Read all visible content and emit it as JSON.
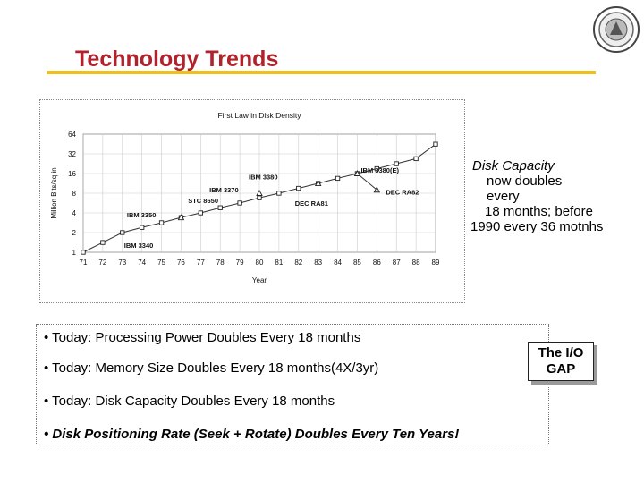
{
  "slide": {
    "title": "Technology Trends",
    "accent_color": "#b0222c",
    "rule_color": "#f0bf1a",
    "logo_icon": "university-seal-icon"
  },
  "chart_data": {
    "type": "line",
    "title": "First Law in Disk Density",
    "xlabel": "Year",
    "ylabel": "Million Bits/sq in",
    "yscale": "log2",
    "ylim": [
      1,
      64
    ],
    "yticks": [
      1,
      2,
      4,
      8,
      16,
      32,
      64
    ],
    "x": [
      "71",
      "72",
      "73",
      "74",
      "75",
      "76",
      "77",
      "78",
      "79",
      "80",
      "81",
      "82",
      "83",
      "84",
      "85",
      "86",
      "87",
      "88",
      "89"
    ],
    "grid": true,
    "series": [
      {
        "marker": "square",
        "x": [
          71,
          72,
          73,
          74,
          75,
          76,
          77,
          78,
          79,
          80,
          81,
          82,
          83,
          84,
          85,
          86,
          87,
          88,
          89
        ],
        "values": [
          1,
          1.41,
          2,
          2.4,
          2.83,
          3.4,
          4,
          4.8,
          5.66,
          6.8,
          8,
          9.5,
          11.3,
          13.5,
          16,
          19,
          22.6,
          27,
          45
        ]
      }
    ],
    "annotations": [
      {
        "label": "IBM 3340",
        "x": 73,
        "y": 1.41
      },
      {
        "label": "IBM 3350",
        "x": 73.6,
        "y": 3.0
      },
      {
        "label": "STC 8650",
        "x": 78,
        "y": 5.0
      },
      {
        "label": "IBM 3370",
        "x": 79,
        "y": 6.8
      },
      {
        "label": "IBM 3380",
        "x": 80,
        "y": 9.5
      },
      {
        "label": "DEC RA81",
        "x": 82,
        "y": 8.0
      },
      {
        "label": "IBM 3380(E)",
        "x": 85,
        "y": 16
      },
      {
        "label": "DEC RA82",
        "x": 86,
        "y": 9.0
      }
    ],
    "points_triangle": [
      {
        "x": 76,
        "y": 3.4
      },
      {
        "x": 80,
        "y": 8.0
      },
      {
        "x": 83,
        "y": 11.3
      },
      {
        "x": 85,
        "y": 16
      },
      {
        "x": 86,
        "y": 9.0
      }
    ]
  },
  "side_note": {
    "line1": "Disk Capacity",
    "line2": "now doubles",
    "line3": "every",
    "line4": "18 months; before",
    "line5": "1990 every 36 motnhs"
  },
  "bullets": {
    "b1": "• Today: Processing Power Doubles Every 18 months",
    "b2": "• Today: Memory Size Doubles Every 18 months(4X/3yr)",
    "b3": "• Today: Disk Capacity Doubles Every 18 months",
    "b4": "• Disk Positioning Rate (Seek + Rotate) Doubles Every Ten Years!"
  },
  "gap_box": {
    "line1": "The I/O",
    "line2": "GAP"
  }
}
